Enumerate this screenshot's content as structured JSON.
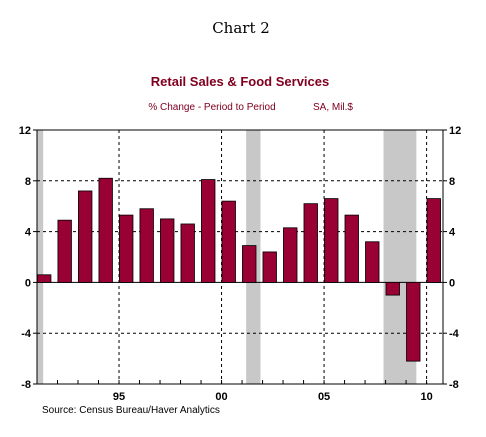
{
  "header": {
    "chart_number": "Chart 2"
  },
  "colors": {
    "bar": "#990033",
    "title": "#800020",
    "recession": "#c8c8c8",
    "grid": "#000000"
  },
  "chart_data": {
    "type": "bar",
    "title": "Retail Sales & Food Services",
    "subtitle_left": "% Change - Period to Period",
    "subtitle_right": "SA, Mil.$",
    "source": "Source:  Census Bureau/Haver Analytics",
    "ylim": [
      -8,
      12
    ],
    "yticks": [
      12,
      8,
      4,
      0,
      -4,
      -8
    ],
    "xlim": [
      1991,
      2010.8
    ],
    "x_tick_labels": [
      {
        "label": "95",
        "year": 1995
      },
      {
        "label": "00",
        "year": 2000
      },
      {
        "label": "05",
        "year": 2005
      },
      {
        "label": "10",
        "year": 2010
      }
    ],
    "grid": true,
    "recessions": [
      [
        1991.0,
        1991.3
      ],
      [
        2001.2,
        2001.9
      ],
      [
        2007.9,
        2009.5
      ]
    ],
    "x": [
      1991,
      1992,
      1993,
      1994,
      1995,
      1996,
      1997,
      1998,
      1999,
      2000,
      2001,
      2002,
      2003,
      2004,
      2005,
      2006,
      2007,
      2008,
      2009,
      2010
    ],
    "values": [
      0.6,
      4.9,
      7.2,
      8.2,
      5.3,
      5.8,
      5.0,
      4.6,
      8.1,
      6.4,
      2.9,
      2.4,
      4.3,
      6.2,
      6.6,
      5.3,
      3.2,
      -1.0,
      -6.2,
      6.6
    ]
  }
}
